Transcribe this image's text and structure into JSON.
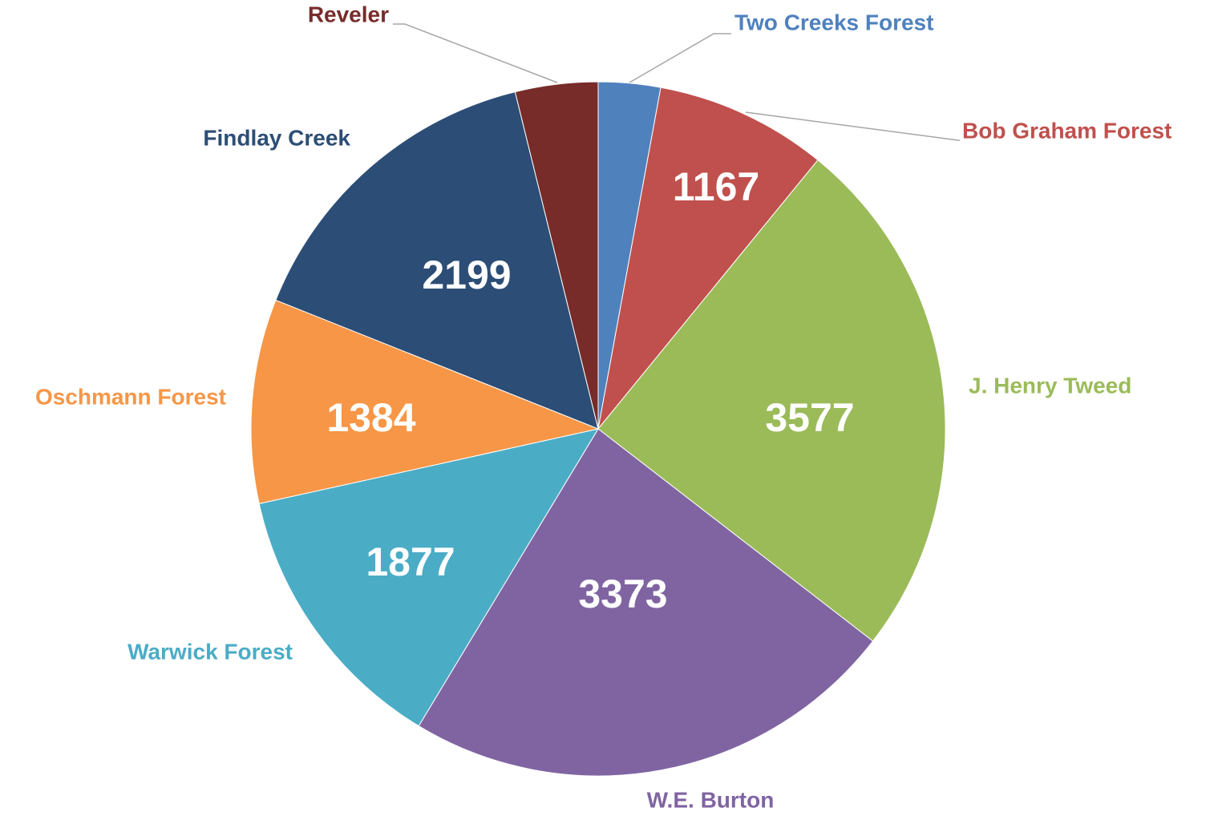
{
  "chart_data": {
    "type": "pie",
    "categories": [
      "Two Creeks Forest",
      "Bob Graham Forest",
      "J. Henry Tweed",
      "W.E. Burton",
      "Warwick Forest",
      "Oschmann Forest",
      "Findlay Creek",
      "Reveler"
    ],
    "values": [
      420,
      1167,
      3577,
      3373,
      1877,
      1384,
      2199,
      560
    ],
    "colors": [
      "#4f81bd",
      "#c0504d",
      "#9bbb59",
      "#8064a2",
      "#4bacc6",
      "#f79646",
      "#2c4d75",
      "#772c2a"
    ]
  }
}
